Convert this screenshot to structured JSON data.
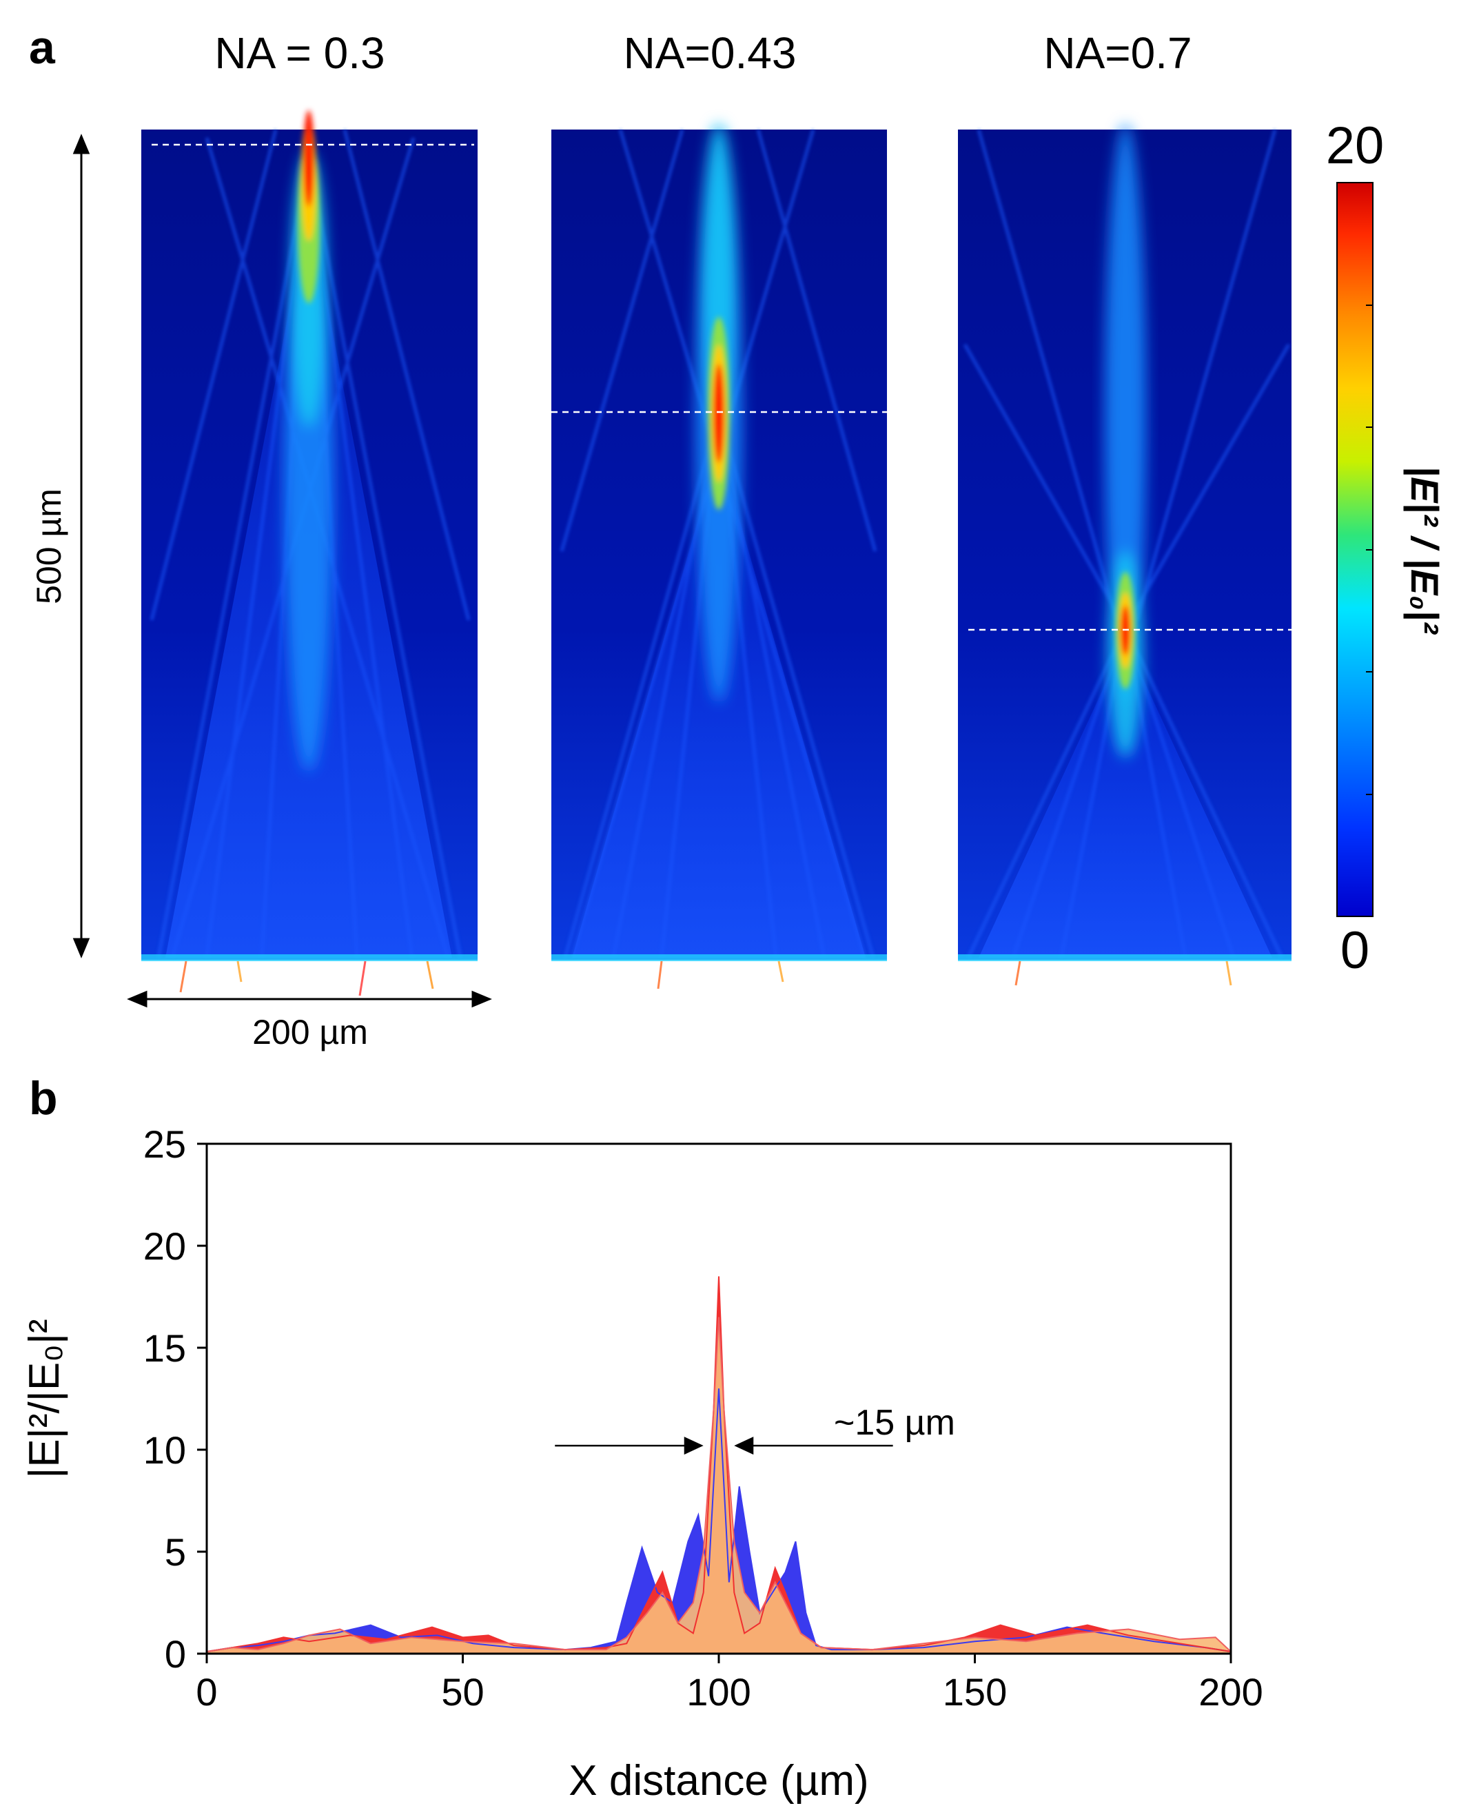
{
  "figure": {
    "panel_a_label": "a",
    "panel_b_label": "b"
  },
  "panel_a": {
    "panels": [
      {
        "title": "NA = 0.3",
        "focus_label": "focus near top"
      },
      {
        "title": "NA=0.43",
        "focus_label": "focus at mid"
      },
      {
        "title": "NA=0.7",
        "focus_label": "focus lower"
      }
    ],
    "height_scale": "500 µm",
    "width_scale": "200 µm",
    "colorbar": {
      "max_label": "20",
      "min_label": "0",
      "label_html": "|E|² / |E₀|²",
      "colors": [
        "#0000cc",
        "#0033ff",
        "#00a0ff",
        "#00e5ff",
        "#2ee67a",
        "#c8f000",
        "#ffd000",
        "#ff8a00",
        "#ff2a00",
        "#d00000"
      ]
    }
  },
  "chart_data": {
    "type": "area",
    "title": "",
    "xlabel": "X distance (µm)",
    "ylabel": "|E|²/|E₀|²",
    "xlim": [
      0,
      200
    ],
    "ylim": [
      0,
      25
    ],
    "xticks": [
      0,
      50,
      100,
      150,
      200
    ],
    "yticks": [
      0,
      5,
      10,
      15,
      20,
      25
    ],
    "annotation": "~15 µm",
    "annotation_span": [
      97,
      103
    ],
    "series": [
      {
        "name": "NA = 0.7",
        "color": "#3a3aee",
        "x": [
          0,
          5,
          10,
          15,
          20,
          25,
          32,
          38,
          45,
          52,
          60,
          70,
          75,
          80,
          82,
          85,
          88,
          91,
          94,
          96,
          98,
          100,
          102,
          104,
          106,
          108,
          111,
          113,
          115,
          117,
          119,
          122,
          130,
          140,
          150,
          160,
          168,
          175,
          185,
          195,
          200
        ],
        "y": [
          0.1,
          0.3,
          0.4,
          0.6,
          0.9,
          1.0,
          1.4,
          0.8,
          0.9,
          0.5,
          0.3,
          0.2,
          0.3,
          0.6,
          2.5,
          5.2,
          3.0,
          2.5,
          5.5,
          6.8,
          3.8,
          13.0,
          3.5,
          8.2,
          5.0,
          2.0,
          3.2,
          4.0,
          5.5,
          2.0,
          0.4,
          0.2,
          0.2,
          0.3,
          0.6,
          0.8,
          1.3,
          1.0,
          0.6,
          0.3,
          0.1
        ]
      },
      {
        "name": "NA = 0.43",
        "color": "#f03030",
        "x": [
          0,
          5,
          10,
          15,
          20,
          28,
          35,
          44,
          50,
          55,
          60,
          70,
          78,
          82,
          86,
          89,
          92,
          95,
          97,
          99,
          100,
          101,
          103,
          105,
          108,
          111,
          113,
          116,
          120,
          130,
          140,
          148,
          155,
          162,
          172,
          180,
          190,
          200
        ],
        "y": [
          0.1,
          0.3,
          0.5,
          0.8,
          0.6,
          0.9,
          0.7,
          1.3,
          0.8,
          0.9,
          0.4,
          0.2,
          0.3,
          0.5,
          2.5,
          4.0,
          1.5,
          1.0,
          3.0,
          12.0,
          18.5,
          12.0,
          3.0,
          1.0,
          1.5,
          4.2,
          3.0,
          1.0,
          0.3,
          0.2,
          0.4,
          0.8,
          1.4,
          0.9,
          1.4,
          0.9,
          0.5,
          0.1
        ]
      },
      {
        "name": "NA = 0.3",
        "color": "#f8b878",
        "x": [
          0,
          5,
          10,
          15,
          20,
          26,
          32,
          40,
          50,
          60,
          70,
          78,
          82,
          86,
          89,
          92,
          95,
          97,
          99,
          100,
          101,
          103,
          105,
          108,
          111,
          113,
          116,
          120,
          130,
          140,
          150,
          160,
          170,
          180,
          190,
          197,
          200
        ],
        "y": [
          0.1,
          0.3,
          0.2,
          0.5,
          0.9,
          1.2,
          0.5,
          0.8,
          0.6,
          0.5,
          0.2,
          0.2,
          0.8,
          2.0,
          3.0,
          1.5,
          2.5,
          5.0,
          12.0,
          16.5,
          12.0,
          5.5,
          3.0,
          2.0,
          3.5,
          2.5,
          1.0,
          0.3,
          0.2,
          0.5,
          0.8,
          0.6,
          1.0,
          1.2,
          0.7,
          0.8,
          0.1
        ]
      }
    ]
  }
}
